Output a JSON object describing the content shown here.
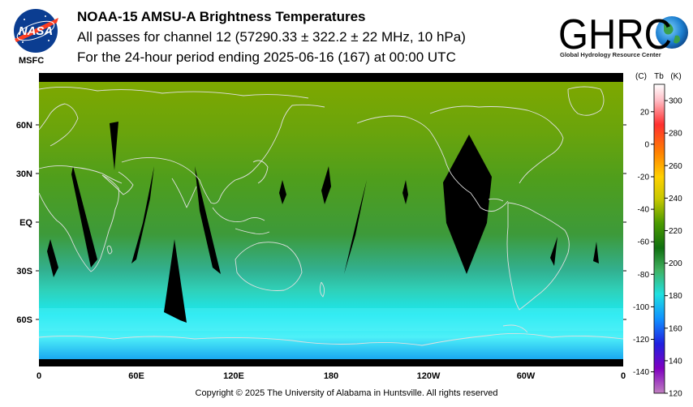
{
  "header": {
    "title": "NOAA-15 AMSU-A Brightness Temperatures",
    "subtitle": "All passes for channel 12 (57290.33 ± 322.2 ± 22 MHz, 10 hPa)",
    "period": "For the 24-hour period ending 2025-06-16 (167) at 00:00 UTC"
  },
  "logos": {
    "nasa_text": "NASA",
    "msfc_text": "MSFC",
    "ghrc_text": "GHRC",
    "ghrc_subtitle": "Global Hydrology Resource Center"
  },
  "map": {
    "lat_labels": [
      "60N",
      "30N",
      "EQ",
      "30S",
      "60S"
    ],
    "lon_labels": [
      "0",
      "60E",
      "120E",
      "180",
      "120W",
      "60W",
      "0"
    ],
    "colors": {
      "north_high_lat": "#7ea800",
      "mid_green": "#4f9e1c",
      "tropics_green": "#3d9a3a",
      "south_teal": "#2fd0b8",
      "south_cyan": "#1ce8f0",
      "south_pole_blue": "#1aa8f0",
      "coastline": "#e0e0e0",
      "no_data": "#000000"
    }
  },
  "colorbar": {
    "header_c": "(C)",
    "header_tb": "Tb",
    "header_k": "(K)",
    "celsius_ticks": [
      "20",
      "0",
      "-20",
      "-40",
      "-60",
      "-80",
      "-100",
      "-120",
      "-140"
    ],
    "kelvin_ticks": [
      "300",
      "280",
      "260",
      "240",
      "220",
      "200",
      "180",
      "160",
      "140",
      "120"
    ],
    "kelvin_range": [
      120,
      310
    ]
  },
  "footer": {
    "copyright": "Copyright © 2025 The University of Alabama in Huntsville.  All rights reserved"
  }
}
